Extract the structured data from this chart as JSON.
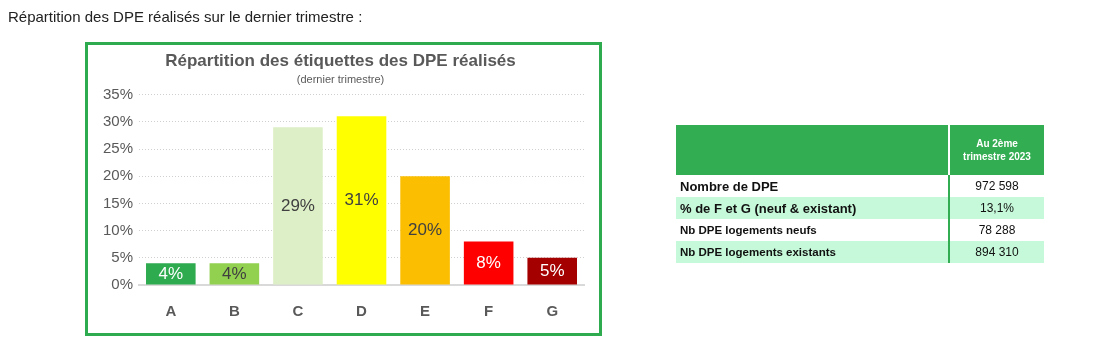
{
  "chart_data": [
    {
      "type": "bar",
      "title": "Répartition des étiquettes des DPE réalisés",
      "subtitle": "(dernier trimestre)",
      "annotations": [
        "Répartition des DPE réalisés sur le dernier trimestre :"
      ],
      "categories": [
        "A",
        "B",
        "C",
        "D",
        "E",
        "F",
        "G"
      ],
      "values": [
        4,
        4,
        29,
        31,
        20,
        8,
        5
      ],
      "colors": [
        "#2eaa4f",
        "#92d050",
        "#ddefc6",
        "#ffff00",
        "#fbbe00",
        "#fe0000",
        "#a50000"
      ],
      "value_labels": [
        "4%",
        "4%",
        "29%",
        "31%",
        "20%",
        "8%",
        "5%"
      ],
      "ylim": [
        0,
        35
      ],
      "yticks": [
        {
          "value": 0,
          "label": "0%"
        },
        {
          "value": 5,
          "label": "5%"
        },
        {
          "value": 10,
          "label": "10%"
        },
        {
          "value": 15,
          "label": "15%"
        },
        {
          "value": 20,
          "label": "20%"
        },
        {
          "value": 25,
          "label": "25%"
        },
        {
          "value": 30,
          "label": "30%"
        },
        {
          "value": 35,
          "label": "35%"
        }
      ],
      "grid": "y",
      "legend": false
    },
    {
      "type": "other",
      "annotations": [
        "Au 2ème trimestre 2023",
        "Nombre de DPE",
        "972 598",
        "% de F et G (neuf & existant)",
        "13,1%",
        "Nb DPE logements neufs",
        "78 288",
        "Nb DPE logements existants",
        "894 310"
      ]
    }
  ]
}
